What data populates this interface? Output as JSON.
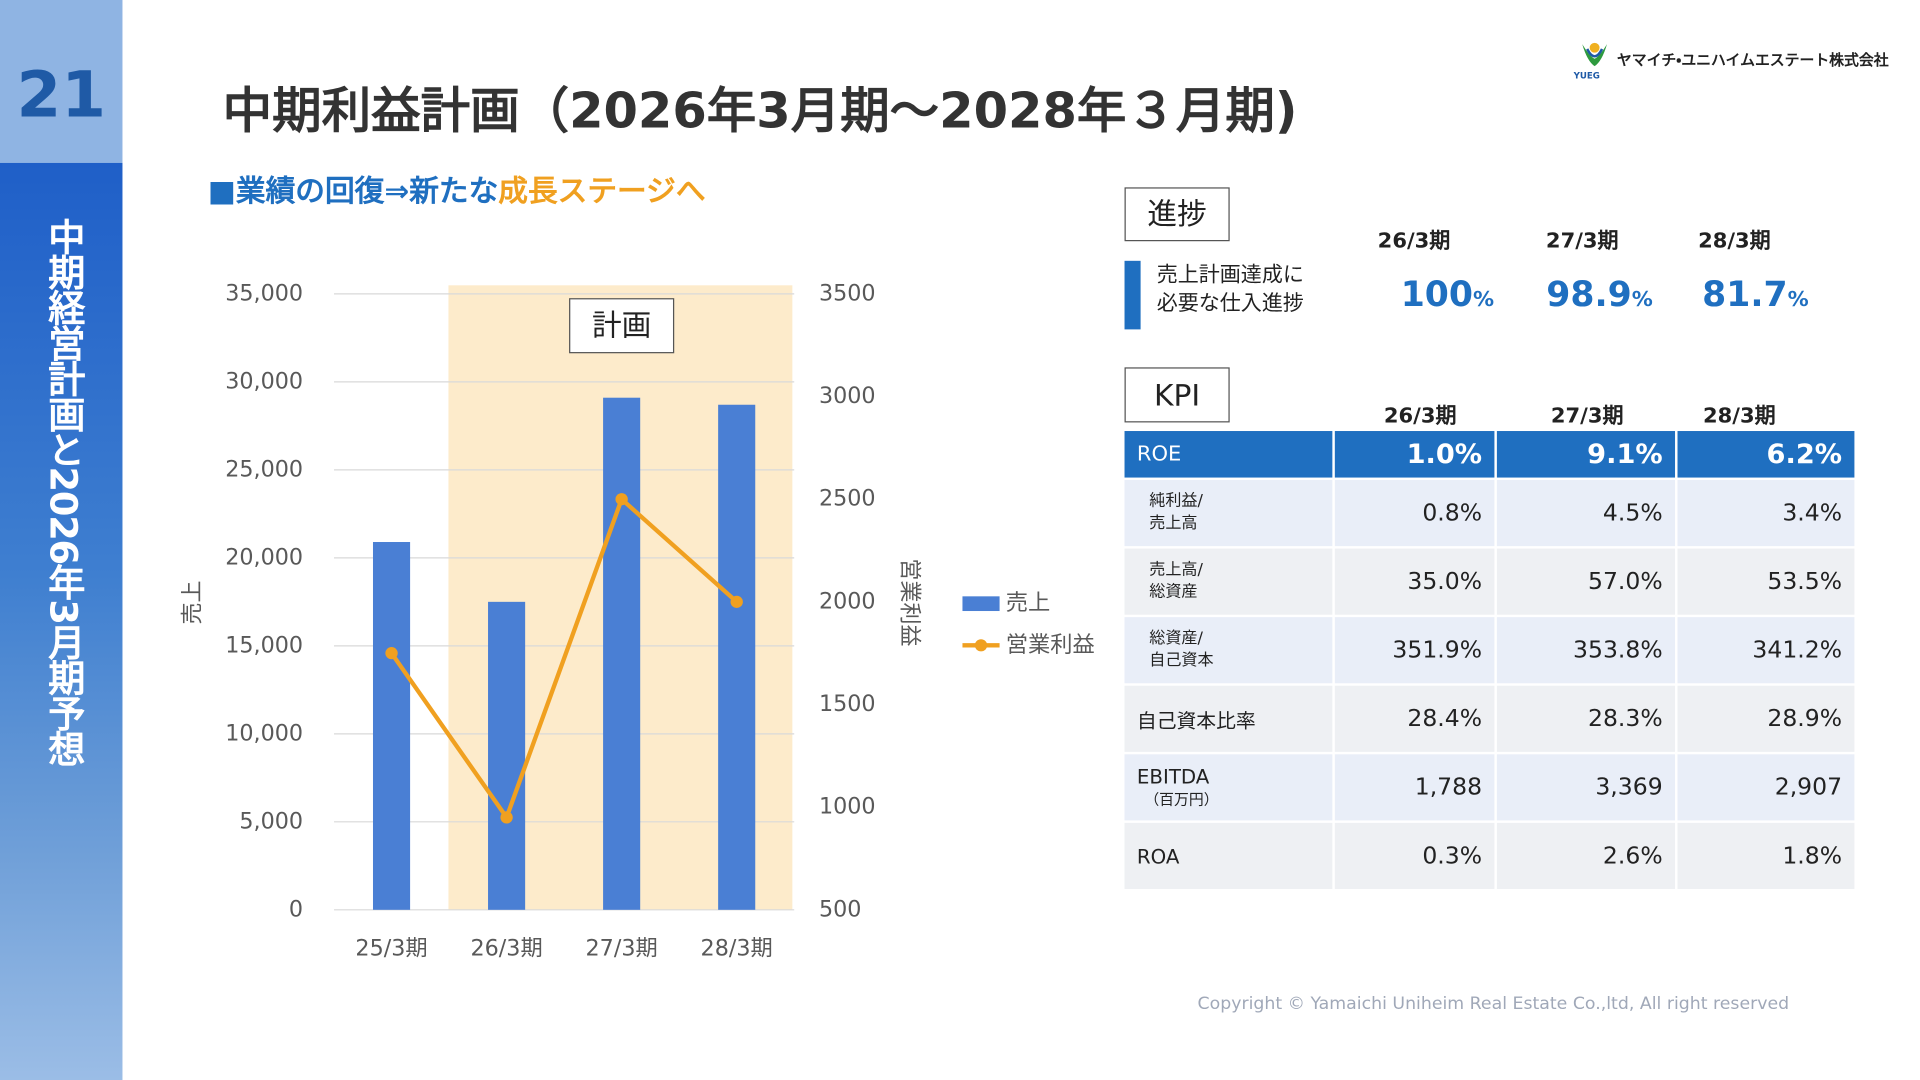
{
  "page_number": "21",
  "sidebar": "中期経営計画と2026年3月期予想",
  "logo": {
    "company": "ヤマイチ・ユニハイムエステート株式会社",
    "mark": "YUEG"
  },
  "title": "中期利益計画（2026年3月期～2028年３月期)",
  "subtitle": {
    "lead": "■業績の回復⇒新たな",
    "highlight": "成長ステージへ"
  },
  "chart_data": {
    "type": "combo",
    "categories": [
      "25/3期",
      "26/3期",
      "27/3期",
      "28/3期"
    ],
    "series": [
      {
        "name": "売上",
        "type": "bar",
        "color": "#4a7fd4",
        "values": [
          20900,
          17500,
          29100,
          28700
        ]
      },
      {
        "name": "営業利益",
        "type": "line",
        "axis": "y2",
        "color": "#f0a020",
        "values": [
          1750,
          950,
          2500,
          2000
        ]
      }
    ],
    "ylabel": "売上",
    "y2label": "営業利益",
    "ylim": [
      0,
      35000
    ],
    "yticks": [
      0,
      {
        "value": 5000,
        "label": "5,000"
      },
      {
        "value": 10000,
        "label": "10,000"
      },
      {
        "value": 15000,
        "label": "15,000"
      },
      {
        "value": 20000,
        "label": "20,000"
      },
      {
        "value": 25000,
        "label": "25,000"
      },
      {
        "value": 30000,
        "label": "30,000"
      },
      {
        "value": 35000,
        "label": "35,000"
      }
    ],
    "y2lim": [
      500,
      3500
    ],
    "y2ticks": [
      500,
      1000,
      1500,
      2000,
      2500,
      3000,
      3500
    ],
    "annotation": "計画",
    "grid": true,
    "legend": "right"
  },
  "progress": {
    "title": "進捗",
    "periods": [
      "26/3期",
      "27/3期",
      "28/3期"
    ],
    "label": "売上計画達成に\n必要な仕入進捗",
    "values": [
      {
        "number": "100",
        "unit": "%"
      },
      {
        "number": "98.9",
        "unit": "%"
      },
      {
        "number": "81.7",
        "unit": "%"
      }
    ]
  },
  "kpi": {
    "title": "KPI",
    "periods": [
      "26/3期",
      "27/3期",
      "28/3期"
    ],
    "rows": [
      {
        "label": "ROE",
        "values": [
          "1.0%",
          "9.1%",
          "6.2%"
        ]
      },
      {
        "label": "純利益/\n売上高",
        "values": [
          "0.8%",
          "4.5%",
          "3.4%"
        ]
      },
      {
        "label": "売上高/\n総資産",
        "values": [
          "35.0%",
          "57.0%",
          "53.5%"
        ]
      },
      {
        "label": "総資産/\n自己資本",
        "values": [
          "351.9%",
          "353.8%",
          "341.2%"
        ]
      },
      {
        "label": "自己資本比率",
        "values": [
          "28.4%",
          "28.3%",
          "28.9%"
        ]
      },
      {
        "label": "EBITDA",
        "sublabel": "（百万円）",
        "values": [
          "1,788",
          "3,369",
          "2,907"
        ]
      },
      {
        "label": "ROA",
        "values": [
          "0.3%",
          "2.6%",
          "1.8%"
        ]
      }
    ]
  },
  "copyright": "Copyright © Yamaichi Uniheim Real Estate Co.,ltd, All right reserved"
}
